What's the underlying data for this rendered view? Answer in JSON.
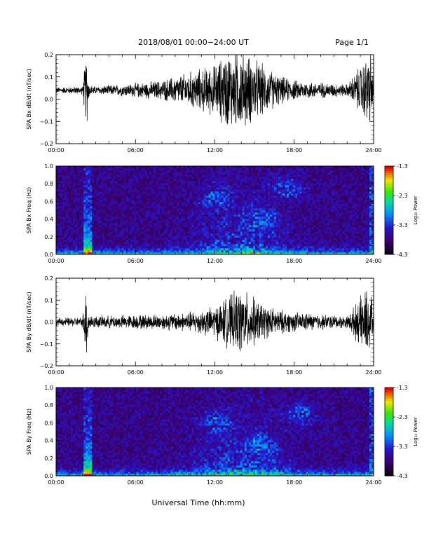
{
  "header": {
    "title": "2018/08/01   00:00−24:00 UT",
    "page": "Page 1/1"
  },
  "xlabel": "Universal Time (hh:mm)",
  "chart_data": [
    {
      "type": "line",
      "ylabel": "SPA Bx dB/dt (nT/sec)",
      "ylim": [
        -0.2,
        0.2
      ],
      "yticks": [
        0.2,
        0.1,
        0.0,
        -0.1,
        -0.2
      ],
      "ytick_labels": [
        "0.2",
        "0.1",
        "0.0",
        "−0.1",
        "−0.2"
      ],
      "xlim_hours": [
        0,
        24
      ],
      "xticks": [
        "00:00",
        "06:00",
        "12:00",
        "18:00",
        "24:00"
      ],
      "baseline": 0.04,
      "envelope_hours": [
        0,
        2,
        2.3,
        2.5,
        3,
        5,
        8,
        10,
        12,
        13,
        14,
        15,
        16,
        17,
        18,
        20,
        22,
        23.8,
        24
      ],
      "envelope_amplitude": [
        0.015,
        0.02,
        0.2,
        0.03,
        0.02,
        0.03,
        0.05,
        0.09,
        0.13,
        0.2,
        0.2,
        0.16,
        0.11,
        0.07,
        0.05,
        0.04,
        0.03,
        0.2,
        0.03
      ]
    },
    {
      "type": "heatmap",
      "ylabel": "SPA Bx Freq (Hz)",
      "ylim": [
        0.0,
        1.0
      ],
      "yticks": [
        0.0,
        0.2,
        0.4,
        0.6,
        0.8,
        1.0
      ],
      "ytick_labels": [
        "0.0",
        "0.2",
        "0.4",
        "0.6",
        "0.8",
        "1.0"
      ],
      "xticks": [
        "00:00",
        "06:00",
        "12:00",
        "18:00",
        "24:00"
      ],
      "colorbar": {
        "label": "Log₁₀ Power",
        "range": [
          -4.3,
          -1.3
        ],
        "ticks": [
          "-1.3",
          "-2.3",
          "-3.3",
          "-4.3"
        ]
      },
      "features_hours_hz": [
        [
          2.4,
          0.9
        ],
        [
          12,
          0.65
        ],
        [
          15.5,
          0.4
        ],
        [
          17.5,
          0.75
        ]
      ]
    },
    {
      "type": "line",
      "ylabel": "SPA By dB/dt (nT/sec)",
      "ylim": [
        -0.2,
        0.2
      ],
      "yticks": [
        0.2,
        0.1,
        0.0,
        -0.1,
        -0.2
      ],
      "ytick_labels": [
        "0.2",
        "0.1",
        "0.0",
        "−0.1",
        "−0.2"
      ],
      "xlim_hours": [
        0,
        24
      ],
      "xticks": [
        "00:00",
        "06:00",
        "12:00",
        "18:00",
        "24:00"
      ],
      "baseline": 0.0,
      "envelope_hours": [
        0,
        2,
        2.3,
        2.5,
        3,
        5,
        8,
        10,
        12,
        13,
        14,
        15,
        16,
        17,
        18,
        20,
        22,
        23.8,
        24
      ],
      "envelope_amplitude": [
        0.02,
        0.025,
        0.2,
        0.04,
        0.03,
        0.035,
        0.04,
        0.05,
        0.08,
        0.13,
        0.17,
        0.12,
        0.08,
        0.06,
        0.05,
        0.04,
        0.03,
        0.2,
        0.03
      ]
    },
    {
      "type": "heatmap",
      "ylabel": "SPA By Freq (Hz)",
      "ylim": [
        0.0,
        1.0
      ],
      "yticks": [
        0.0,
        0.2,
        0.4,
        0.6,
        0.8,
        1.0
      ],
      "ytick_labels": [
        "0.0",
        "0.2",
        "0.4",
        "0.6",
        "0.8",
        "1.0"
      ],
      "xticks": [
        "00:00",
        "06:00",
        "12:00",
        "18:00",
        "24:00"
      ],
      "colorbar": {
        "label": "Log₁₀ Power",
        "range": [
          -4.3,
          -1.3
        ],
        "ticks": [
          "-1.3",
          "-2.3",
          "-3.3",
          "-4.3"
        ]
      },
      "features_hours_hz": [
        [
          2.4,
          0.9
        ],
        [
          12,
          0.6
        ],
        [
          15.5,
          0.35
        ],
        [
          18.5,
          0.7
        ]
      ]
    }
  ]
}
